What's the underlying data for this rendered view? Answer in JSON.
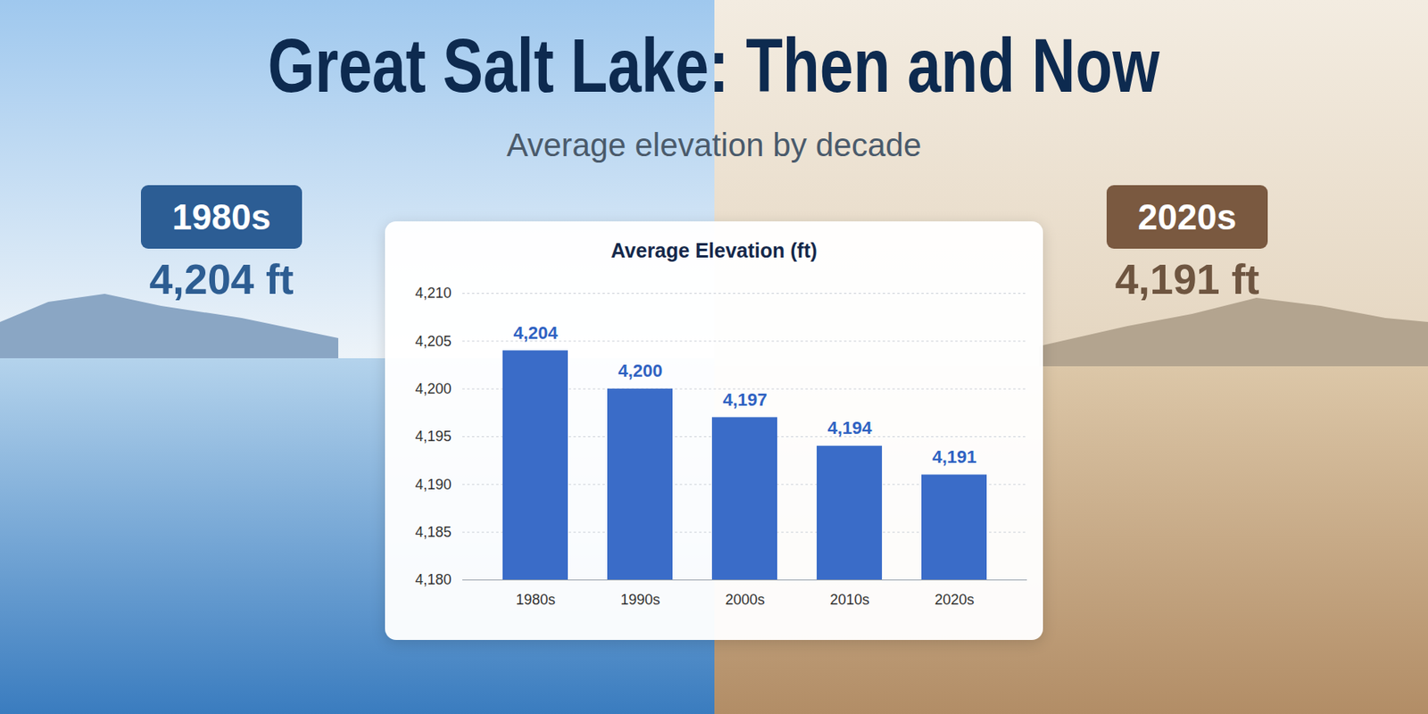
{
  "chart_data": {
    "type": "bar",
    "title": "Great Salt Lake: Then and Now",
    "subtitle": "Average elevation by decade",
    "plot_title": "Average Elevation (ft)",
    "annotations": [
      {
        "label": "1980s",
        "text": "4,204 ft"
      },
      {
        "label": "2020s",
        "text": "4,191 ft"
      }
    ],
    "categories": [
      "1980s",
      "1990s",
      "2000s",
      "2010s",
      "2020s"
    ],
    "values": [
      4204,
      4200,
      4197,
      4194,
      4191
    ],
    "value_labels": [
      "4,204",
      "4,200",
      "4,197",
      "4,194",
      "4,191"
    ],
    "color": "#3a6cc8",
    "data_labels": true,
    "ylim": [
      4180,
      4210
    ],
    "yticks": [
      {
        "value": 4180,
        "label": "4,180"
      },
      {
        "value": 4185,
        "label": "4,185"
      },
      {
        "value": 4190,
        "label": "4,190"
      },
      {
        "value": 4195,
        "label": "4,195"
      },
      {
        "value": 4200,
        "label": "4,200"
      },
      {
        "value": 4205,
        "label": "4,205"
      },
      {
        "value": 4210,
        "label": "4,210"
      }
    ],
    "grid": true
  }
}
